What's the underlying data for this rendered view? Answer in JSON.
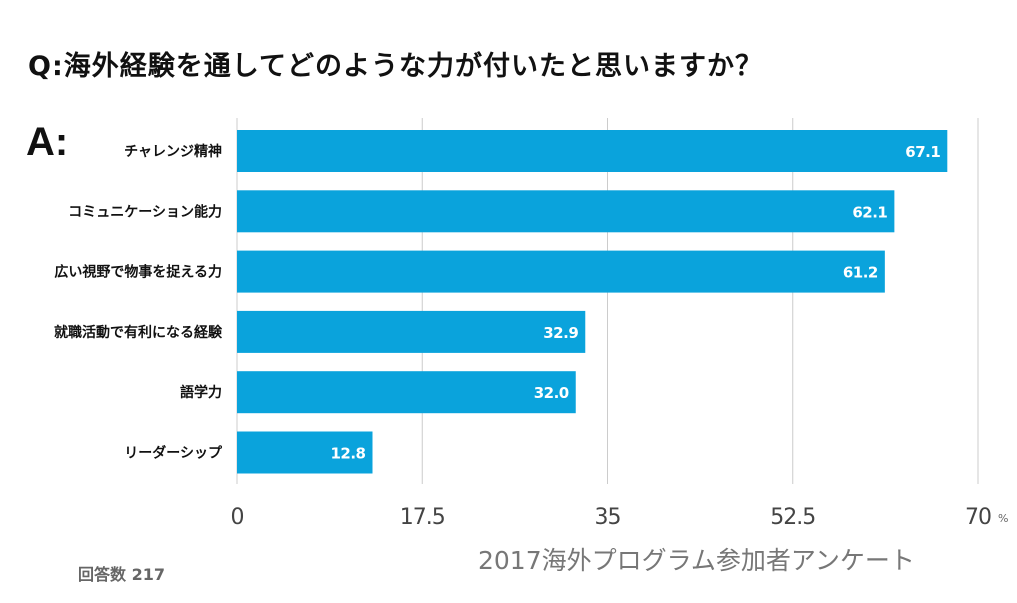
{
  "title": "Q:海外経験を通してどのような力が付いたと思いますか？",
  "answer_label": "A:",
  "footer": {
    "respondents": "回答数 217",
    "source": "2017海外プログラム参加者アンケート"
  },
  "colors": {
    "bar": "#0aa3dc",
    "grid": "#cccccc"
  },
  "chart_data": {
    "type": "bar",
    "orientation": "horizontal",
    "categories": [
      "チャレンジ精神",
      "コミュニケーション能力",
      "広い視野で物事を捉える力",
      "就職活動で有利になる経験",
      "語学力",
      "リーダーシップ"
    ],
    "values": [
      67.1,
      62.1,
      61.2,
      32.9,
      32.0,
      12.8
    ],
    "value_labels": [
      "67.1",
      "62.1",
      "61.2",
      "32.9",
      "32.0",
      "12.8"
    ],
    "xlim": [
      0,
      70
    ],
    "xticks": [
      0,
      17.5,
      35,
      52.5,
      70
    ],
    "xtick_labels": [
      "0",
      "17.5",
      "35",
      "52.5",
      "70"
    ],
    "unit": "%",
    "grid": true
  }
}
